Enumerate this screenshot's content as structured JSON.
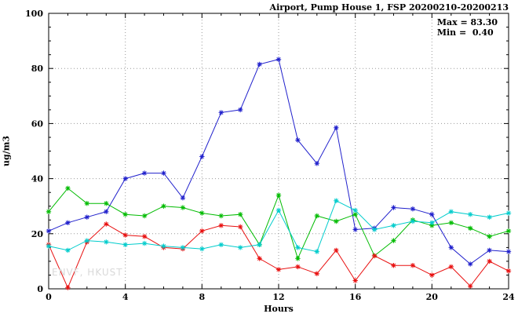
{
  "title": "Airport, Pump House 1, FSP 20200210-20200213",
  "annotation": {
    "max_label": "Max = 83.30",
    "min_label": "Min =  0.40"
  },
  "watermark": "ENVF, HKUST",
  "chart_data": {
    "type": "line",
    "title": "Airport, Pump House 1, FSP 20200210-20200213",
    "xlabel": "Hours",
    "ylabel": "ug/m3",
    "xlim": [
      0,
      24
    ],
    "ylim": [
      0,
      100
    ],
    "xticks": [
      0,
      4,
      8,
      12,
      16,
      20,
      24
    ],
    "yticks": [
      0,
      20,
      40,
      60,
      80,
      100
    ],
    "grid": true,
    "legend_position": "none",
    "max_value": 83.3,
    "min_value": 0.4,
    "x": [
      0,
      1,
      2,
      3,
      4,
      5,
      6,
      7,
      8,
      9,
      10,
      11,
      12,
      13,
      14,
      15,
      16,
      17,
      18,
      19,
      20,
      21,
      22,
      23,
      24
    ],
    "series": [
      {
        "name": "series-blue",
        "color": "#2020cc",
        "values": [
          21,
          24,
          26,
          28,
          40,
          42,
          42,
          33,
          48,
          64,
          65,
          81.5,
          83.3,
          54,
          45.5,
          58.5,
          21.5,
          22,
          29.5,
          29,
          27,
          15,
          9,
          14,
          13.5
        ]
      },
      {
        "name": "series-green",
        "color": "#00bb00",
        "values": [
          28,
          36.5,
          31,
          31,
          27,
          26.5,
          30,
          29.5,
          27.5,
          26.5,
          27,
          16,
          34,
          11,
          26.5,
          24.5,
          27,
          12,
          17.5,
          25,
          23,
          24,
          22,
          19,
          21
        ]
      },
      {
        "name": "series-red",
        "color": "#e81010",
        "values": [
          16,
          0.4,
          17,
          23.5,
          19.5,
          19,
          15,
          14.5,
          21,
          23,
          22.5,
          11,
          7,
          8,
          5.5,
          14,
          3,
          12,
          8.5,
          8.5,
          5,
          8,
          1,
          10,
          6.5
        ]
      },
      {
        "name": "series-cyan",
        "color": "#00cccc",
        "values": [
          15.5,
          14,
          17.5,
          17,
          16,
          16.5,
          15.5,
          15,
          14.5,
          16,
          15,
          16,
          28.5,
          15,
          13.5,
          32,
          28.5,
          21.5,
          23,
          24.5,
          24,
          28,
          27,
          26,
          27.5
        ]
      }
    ]
  }
}
